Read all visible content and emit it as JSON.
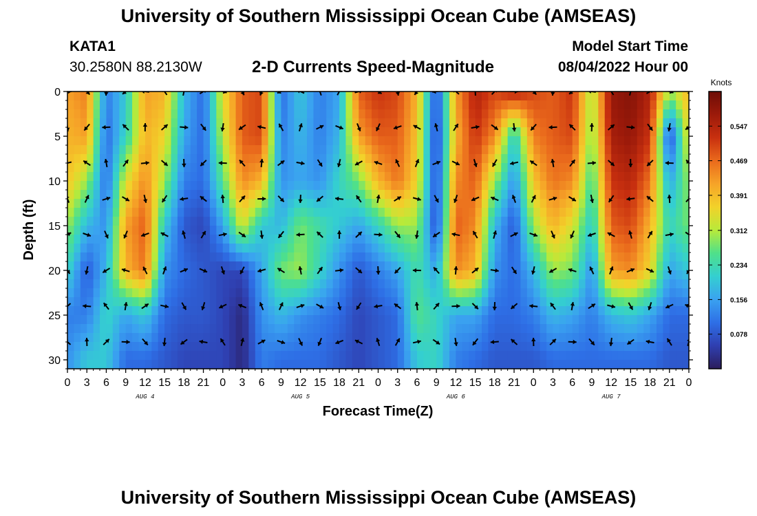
{
  "header": {
    "title": "University of Southern Mississippi Ocean Cube (AMSEAS)",
    "station_id": "KATA1",
    "coords": "30.2580N  88.2130W",
    "subtitle": "2-D Currents Speed-Magnitude",
    "model_start_label": "Model Start Time",
    "model_start_value": "08/04/2022 Hour 00"
  },
  "footer": {
    "title": "University of Southern Mississippi Ocean Cube (AMSEAS)"
  },
  "chart_data": {
    "type": "heatmap",
    "title": "2-D Currents Speed-Magnitude",
    "xlabel": "Forecast Time(Z)",
    "ylabel": "Depth (ft)",
    "xlim": [
      0,
      96
    ],
    "ylim": [
      0,
      31
    ],
    "y_ticks": [
      0,
      5,
      10,
      15,
      20,
      25,
      30
    ],
    "x_tick_hours": [
      0,
      3,
      6,
      9,
      12,
      15,
      18,
      21,
      24,
      27,
      30,
      33,
      36,
      39,
      42,
      45,
      48,
      51,
      54,
      57,
      60,
      63,
      66,
      69,
      72,
      75,
      78,
      81,
      84,
      87,
      90,
      93,
      96
    ],
    "x_tick_labels": [
      "0",
      "3",
      "6",
      "9",
      "12",
      "15",
      "18",
      "21",
      "0",
      "3",
      "6",
      "9",
      "12",
      "15",
      "18",
      "21",
      "0",
      "3",
      "6",
      "9",
      "12",
      "15",
      "18",
      "21",
      "0",
      "3",
      "6",
      "9",
      "12",
      "15",
      "18",
      "21",
      "0"
    ],
    "day_labels": [
      {
        "label": "AUG 4",
        "hour": 12
      },
      {
        "label": "AUG 5",
        "hour": 36
      },
      {
        "label": "AUG 6",
        "hour": 60
      },
      {
        "label": "AUG 7",
        "hour": 84
      }
    ],
    "colorbar": {
      "unit": "Knots",
      "min": 0,
      "max": 0.625,
      "ticks": [
        0.078,
        0.156,
        0.234,
        0.312,
        0.391,
        0.469,
        0.547
      ],
      "tick_labels": [
        "0.078",
        "0.156",
        "0.234",
        "0.312",
        "0.391",
        "0.469",
        "0.547"
      ],
      "colors": [
        "#2b1d5c",
        "#2f3fb0",
        "#2e6fe6",
        "#3aa2f0",
        "#34cfd0",
        "#4fe08a",
        "#b8ea3a",
        "#f2d22a",
        "#f6a428",
        "#ea6a1c",
        "#c8300f",
        "#9c1a0a",
        "#6e0d06"
      ]
    },
    "arrow_depths_ft": [
      0,
      4,
      8,
      12,
      16,
      20,
      24,
      28
    ],
    "arrow_hours": [
      0,
      3,
      6,
      9,
      12,
      15,
      18,
      21,
      24,
      27,
      30,
      33,
      36,
      39,
      42,
      45,
      48,
      51,
      54,
      57,
      60,
      63,
      66,
      69,
      72,
      75,
      78,
      81,
      84,
      87,
      90,
      93,
      96
    ],
    "speed_columns_hours": [
      0,
      3,
      6,
      9,
      12,
      15,
      18,
      21,
      24,
      27,
      30,
      33,
      36,
      39,
      42,
      45,
      48,
      51,
      54,
      57,
      60,
      63,
      66,
      69,
      72,
      75,
      78,
      81,
      84,
      87,
      90,
      93,
      96
    ],
    "speed_depths_ft": [
      0,
      5,
      10,
      15,
      20,
      25,
      30
    ],
    "speed_knots": [
      [
        0.42,
        0.45,
        0.12,
        0.2,
        0.42,
        0.4,
        0.18,
        0.1,
        0.35,
        0.48,
        0.5,
        0.1,
        0.2,
        0.12,
        0.16,
        0.48,
        0.52,
        0.5,
        0.4,
        0.06,
        0.42,
        0.55,
        0.5,
        0.55,
        0.5,
        0.48,
        0.52,
        0.3,
        0.58,
        0.6,
        0.55,
        0.3,
        0.4
      ],
      [
        0.4,
        0.42,
        0.1,
        0.22,
        0.4,
        0.36,
        0.16,
        0.1,
        0.32,
        0.48,
        0.5,
        0.12,
        0.18,
        0.12,
        0.18,
        0.42,
        0.48,
        0.48,
        0.38,
        0.05,
        0.4,
        0.52,
        0.44,
        0.2,
        0.45,
        0.48,
        0.5,
        0.28,
        0.56,
        0.58,
        0.52,
        0.06,
        0.36
      ],
      [
        0.38,
        0.3,
        0.1,
        0.34,
        0.44,
        0.3,
        0.12,
        0.1,
        0.26,
        0.44,
        0.4,
        0.14,
        0.16,
        0.14,
        0.22,
        0.28,
        0.4,
        0.46,
        0.36,
        0.06,
        0.44,
        0.48,
        0.3,
        0.14,
        0.38,
        0.46,
        0.44,
        0.24,
        0.52,
        0.54,
        0.46,
        0.16,
        0.3
      ],
      [
        0.3,
        0.18,
        0.14,
        0.42,
        0.48,
        0.2,
        0.08,
        0.06,
        0.16,
        0.34,
        0.2,
        0.18,
        0.28,
        0.24,
        0.2,
        0.16,
        0.22,
        0.3,
        0.3,
        0.06,
        0.48,
        0.44,
        0.18,
        0.08,
        0.3,
        0.4,
        0.34,
        0.2,
        0.48,
        0.5,
        0.4,
        0.22,
        0.28
      ],
      [
        0.22,
        0.08,
        0.18,
        0.4,
        0.46,
        0.14,
        0.1,
        0.08,
        0.06,
        0.06,
        0.16,
        0.28,
        0.3,
        0.22,
        0.14,
        0.08,
        0.12,
        0.16,
        0.24,
        0.16,
        0.44,
        0.4,
        0.14,
        0.1,
        0.18,
        0.3,
        0.28,
        0.14,
        0.42,
        0.44,
        0.36,
        0.16,
        0.2
      ],
      [
        0.12,
        0.12,
        0.22,
        0.16,
        0.2,
        0.1,
        0.08,
        0.08,
        0.06,
        0.02,
        0.14,
        0.18,
        0.14,
        0.12,
        0.1,
        0.06,
        0.08,
        0.1,
        0.26,
        0.22,
        0.16,
        0.16,
        0.1,
        0.1,
        0.12,
        0.18,
        0.16,
        0.12,
        0.18,
        0.2,
        0.16,
        0.1,
        0.1
      ],
      [
        0.14,
        0.2,
        0.2,
        0.1,
        0.1,
        0.08,
        0.06,
        0.06,
        0.06,
        0.02,
        0.12,
        0.1,
        0.1,
        0.1,
        0.08,
        0.06,
        0.08,
        0.1,
        0.2,
        0.22,
        0.12,
        0.1,
        0.08,
        0.08,
        0.08,
        0.1,
        0.1,
        0.1,
        0.1,
        0.1,
        0.1,
        0.08,
        0.08
      ]
    ]
  }
}
